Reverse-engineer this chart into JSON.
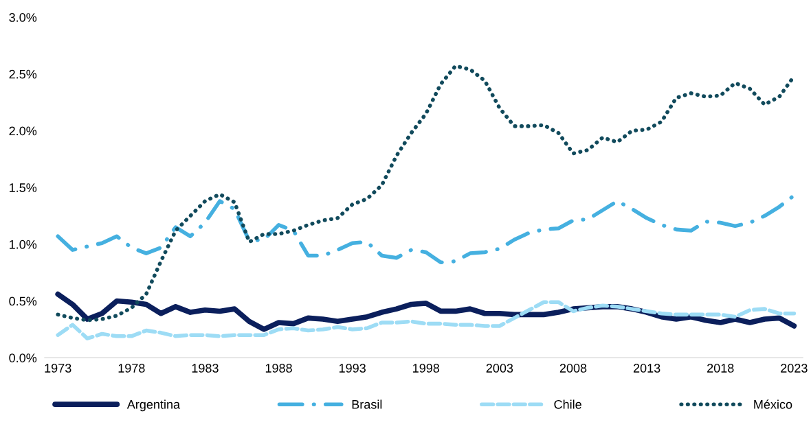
{
  "chart_data": {
    "type": "line",
    "x": [
      1973,
      1974,
      1975,
      1976,
      1977,
      1978,
      1979,
      1980,
      1981,
      1982,
      1983,
      1984,
      1985,
      1986,
      1987,
      1988,
      1989,
      1990,
      1991,
      1992,
      1993,
      1994,
      1995,
      1996,
      1997,
      1998,
      1999,
      2000,
      2001,
      2002,
      2003,
      2004,
      2005,
      2006,
      2007,
      2008,
      2009,
      2010,
      2011,
      2012,
      2013,
      2014,
      2015,
      2016,
      2017,
      2018,
      2019,
      2020,
      2021,
      2022,
      2023
    ],
    "series": [
      {
        "name": "Argentina",
        "color": "#0b1f5c",
        "line_style": "solid",
        "values": [
          0.56,
          0.47,
          0.34,
          0.39,
          0.5,
          0.49,
          0.47,
          0.39,
          0.45,
          0.4,
          0.42,
          0.41,
          0.43,
          0.32,
          0.25,
          0.31,
          0.3,
          0.35,
          0.34,
          0.32,
          0.34,
          0.36,
          0.4,
          0.43,
          0.47,
          0.48,
          0.41,
          0.41,
          0.43,
          0.39,
          0.39,
          0.38,
          0.38,
          0.38,
          0.4,
          0.43,
          0.44,
          0.45,
          0.45,
          0.43,
          0.4,
          0.36,
          0.34,
          0.36,
          0.33,
          0.31,
          0.34,
          0.31,
          0.34,
          0.35,
          0.28
        ]
      },
      {
        "name": "Brasil",
        "color": "#45b0e0",
        "line_style": "dashdot",
        "values": [
          1.07,
          0.95,
          0.98,
          1.01,
          1.07,
          0.97,
          0.92,
          0.97,
          1.15,
          1.07,
          1.19,
          1.38,
          1.31,
          1.03,
          1.04,
          1.17,
          1.12,
          0.9,
          0.9,
          0.95,
          1.01,
          1.02,
          0.9,
          0.88,
          0.95,
          0.93,
          0.84,
          0.85,
          0.92,
          0.93,
          0.96,
          1.04,
          1.1,
          1.13,
          1.14,
          1.21,
          1.22,
          1.3,
          1.38,
          1.31,
          1.23,
          1.17,
          1.13,
          1.12,
          1.2,
          1.19,
          1.16,
          1.19,
          1.25,
          1.33,
          1.43
        ]
      },
      {
        "name": "Chile",
        "color": "#9ddcf5",
        "line_style": "dashed",
        "values": [
          0.2,
          0.29,
          0.17,
          0.21,
          0.19,
          0.19,
          0.24,
          0.22,
          0.19,
          0.2,
          0.2,
          0.19,
          0.2,
          0.2,
          0.2,
          0.25,
          0.26,
          0.24,
          0.25,
          0.27,
          0.25,
          0.26,
          0.31,
          0.31,
          0.32,
          0.3,
          0.3,
          0.29,
          0.29,
          0.28,
          0.28,
          0.35,
          0.42,
          0.49,
          0.49,
          0.41,
          0.44,
          0.46,
          0.45,
          0.43,
          0.41,
          0.39,
          0.38,
          0.38,
          0.38,
          0.38,
          0.36,
          0.42,
          0.43,
          0.39,
          0.39
        ]
      },
      {
        "name": "México",
        "color": "#114a5c",
        "line_style": "dotted",
        "values": [
          0.38,
          0.35,
          0.33,
          0.34,
          0.37,
          0.44,
          0.56,
          0.85,
          1.12,
          1.25,
          1.38,
          1.44,
          1.37,
          1.02,
          1.09,
          1.09,
          1.12,
          1.17,
          1.21,
          1.23,
          1.35,
          1.4,
          1.52,
          1.78,
          1.98,
          2.15,
          2.41,
          2.57,
          2.54,
          2.44,
          2.2,
          2.04,
          2.04,
          2.05,
          1.98,
          1.8,
          1.83,
          1.94,
          1.9,
          2.0,
          2.01,
          2.08,
          2.29,
          2.33,
          2.3,
          2.31,
          2.42,
          2.37,
          2.23,
          2.3,
          2.48
        ]
      }
    ],
    "xlim": [
      1972.1,
      2023.6
    ],
    "xticks": [
      1973,
      1978,
      1983,
      1988,
      1993,
      1998,
      2003,
      2008,
      2013,
      2018,
      2023
    ],
    "ylim": [
      0,
      3.0
    ],
    "yticks": [
      {
        "value": 0,
        "label": "0.0%"
      },
      {
        "value": 0.5,
        "label": "0.5%"
      },
      {
        "value": 1.0,
        "label": "1.0%"
      },
      {
        "value": 1.5,
        "label": "1.5%"
      },
      {
        "value": 2.0,
        "label": "2.0%"
      },
      {
        "value": 2.5,
        "label": "2.5%"
      },
      {
        "value": 3.0,
        "label": "3.0%"
      }
    ],
    "grid": false,
    "legend": "bottom"
  }
}
